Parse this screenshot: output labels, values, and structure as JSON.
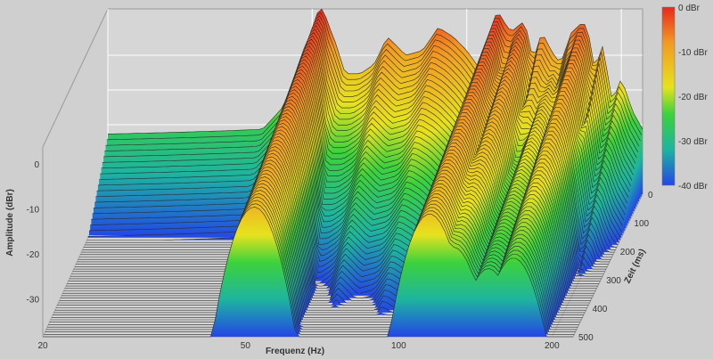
{
  "chart_data": {
    "type": "waterfall-3d",
    "xlabel": "Frequenz (Hz)",
    "ylabel": "Amplitude (dBr)",
    "zlabel": "Zeit (ms)",
    "x_scale": "log",
    "xlim": [
      20,
      220
    ],
    "x_ticks": [
      "20",
      "50",
      "100",
      "200"
    ],
    "ylim": [
      -40,
      0
    ],
    "y_ticks": [
      "0",
      "-10",
      "-20",
      "-30"
    ],
    "zlim": [
      0,
      500
    ],
    "z_ticks": [
      "0",
      "100",
      "200",
      "300",
      "400",
      "500"
    ],
    "colorbar": {
      "labels": [
        "0 dBr",
        "-10 dBr",
        "-20 dBr",
        "-30 dBr",
        "-40 dBr"
      ],
      "range": [
        -40,
        0
      ],
      "colors": [
        "#e8281e",
        "#f29a24",
        "#e6e21e",
        "#3cd23c",
        "#1eb4a0",
        "#2346e6"
      ]
    },
    "initial_response": {
      "frequency_hz": [
        20,
        30,
        40,
        44,
        48,
        52,
        55,
        58,
        62,
        66,
        70,
        76,
        82,
        88,
        94,
        100,
        106,
        110,
        115,
        122,
        128,
        134,
        140,
        146,
        152,
        160,
        168,
        176,
        184,
        192,
        200,
        210,
        220
      ],
      "level_dbr": [
        -27,
        -26.5,
        -26,
        -21,
        -9,
        0,
        -6,
        -14,
        -14,
        -12,
        -6,
        -10,
        -9,
        -4,
        -6,
        -9,
        -13,
        -7,
        -1,
        -5,
        -3,
        -12,
        -5,
        -9,
        -12,
        -5,
        -3,
        -14,
        -8,
        -20,
        -15,
        -22,
        -26
      ]
    },
    "resonances": [
      {
        "frequency_hz": 52,
        "decay_ms": 500
      },
      {
        "frequency_hz": 115,
        "decay_ms": 480
      },
      {
        "frequency_hz": 128,
        "decay_ms": 340
      },
      {
        "frequency_hz": 150,
        "decay_ms": 420
      },
      {
        "frequency_hz": 168,
        "decay_ms": 300
      }
    ],
    "time_slices_ms": 60,
    "grid": true
  }
}
